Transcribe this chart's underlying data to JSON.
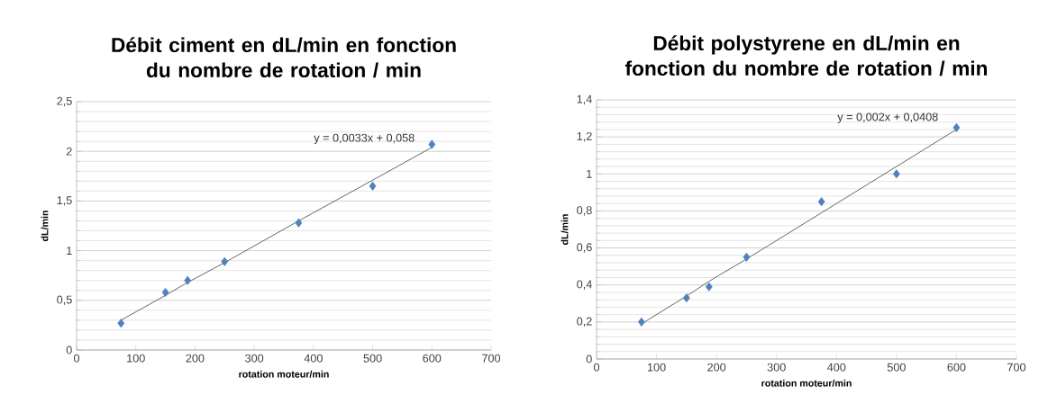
{
  "chart_data": [
    {
      "type": "scatter",
      "title": "Débit ciment en dL/min en fonction du nombre de rotation / min",
      "xlabel": "rotation  moteur/min",
      "ylabel": "dL/min",
      "x": [
        75,
        150,
        187.5,
        250,
        375,
        500,
        600
      ],
      "series": [
        {
          "type": "scatter",
          "color": "#4f81bd",
          "marker": "diamond",
          "values": [
            0.27,
            0.58,
            0.7,
            0.89,
            1.28,
            1.65,
            2.07
          ]
        },
        {
          "type": "line",
          "color": "#404040",
          "marker": "none",
          "values": [
            0.3,
            0.55,
            0.68,
            0.88,
            1.3,
            1.71,
            2.04
          ]
        }
      ],
      "annotations": [
        "y = 0,0033x + 0,058"
      ],
      "xlim": [
        0,
        700
      ],
      "xticks": [
        0,
        100,
        200,
        300,
        400,
        500,
        600,
        700
      ],
      "ylim": [
        0,
        2.5
      ],
      "yticks": [
        0,
        {
          "value": 0.5,
          "label": "0,5"
        },
        1,
        {
          "value": 1.5,
          "label": "1,5"
        },
        2,
        {
          "value": 2.5,
          "label": "2,5"
        }
      ],
      "grid": "y"
    },
    {
      "type": "scatter",
      "title": "Débit polystyrene en dL/min en fonction du nombre de rotation / min",
      "xlabel": "rotation  moteur/min",
      "ylabel": "dL/min",
      "x": [
        75,
        150,
        187.5,
        250,
        375,
        500,
        600
      ],
      "series": [
        {
          "type": "scatter",
          "color": "#4f81bd",
          "marker": "diamond",
          "values": [
            0.2,
            0.33,
            0.39,
            0.55,
            0.85,
            1.0,
            1.25
          ]
        },
        {
          "type": "line",
          "color": "#404040",
          "marker": "none",
          "values": [
            0.19,
            0.34,
            0.42,
            0.54,
            0.79,
            1.04,
            1.24
          ]
        }
      ],
      "annotations": [
        "y = 0,002x + 0,0408"
      ],
      "xlim": [
        0,
        700
      ],
      "xticks": [
        0,
        100,
        200,
        300,
        400,
        500,
        600,
        700
      ],
      "ylim": [
        0,
        1.4
      ],
      "yticks": [
        0,
        {
          "value": 0.2,
          "label": "0,2"
        },
        {
          "value": 0.4,
          "label": "0,4"
        },
        {
          "value": 0.6,
          "label": "0,6"
        },
        {
          "value": 0.8,
          "label": "0,8"
        },
        1,
        {
          "value": 1.2,
          "label": "1,2"
        },
        {
          "value": 1.4,
          "label": "1,4"
        }
      ],
      "grid": "y"
    }
  ]
}
